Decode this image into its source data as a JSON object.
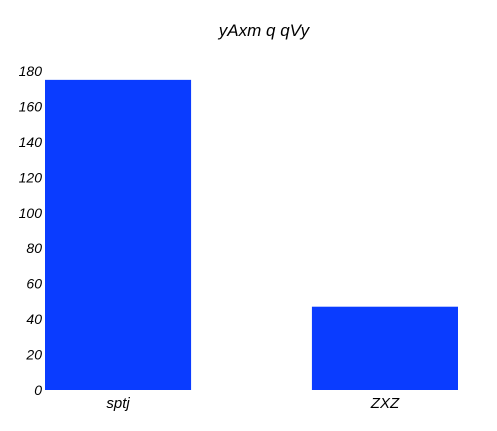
{
  "chart_data": {
    "type": "bar",
    "title": "yAxm q qVy",
    "xlabel": "",
    "ylabel": "",
    "categories": [
      "sptj",
      "ZXZ"
    ],
    "values": [
      175,
      47
    ],
    "ylim": [
      0,
      180
    ],
    "yticks": [
      0,
      20,
      40,
      60,
      80,
      100,
      120,
      140,
      160,
      180
    ],
    "grid": false,
    "legend": "none",
    "bar_color": "#0a3cff"
  }
}
